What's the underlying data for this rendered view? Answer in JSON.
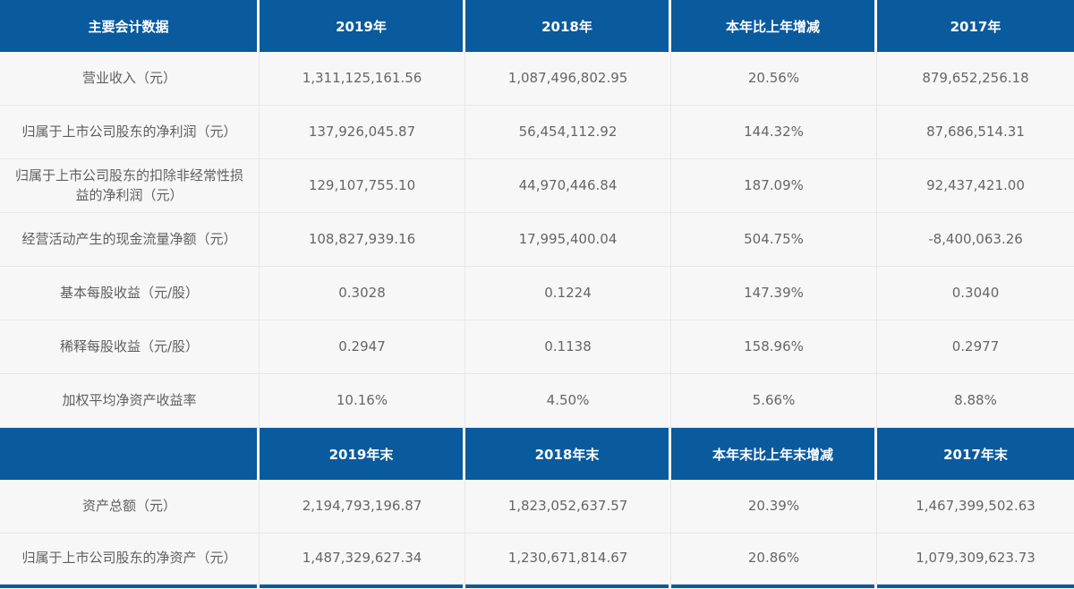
{
  "theme": {
    "header_bg": "#0a5a9e",
    "header_text": "#ffffff",
    "row_bg": "#f7f7f7",
    "body_text": "#666666",
    "grid_line": "#e8e8e8"
  },
  "table": {
    "section_annual": {
      "header": [
        "主要会计数据",
        "2019年",
        "2018年",
        "本年比上年增减",
        "2017年"
      ],
      "rows": [
        {
          "cells": [
            "营业收入（元）",
            "1,311,125,161.56",
            "1,087,496,802.95",
            "20.56%",
            "879,652,256.18"
          ]
        },
        {
          "cells": [
            "归属于上市公司股东的净利润（元）",
            "137,926,045.87",
            "56,454,112.92",
            "144.32%",
            "87,686,514.31"
          ]
        },
        {
          "cells": [
            "归属于上市公司股东的扣除非经常性损益的净利润（元）",
            "129,107,755.10",
            "44,970,446.84",
            "187.09%",
            "92,437,421.00"
          ]
        },
        {
          "cells": [
            "经营活动产生的现金流量净额（元）",
            "108,827,939.16",
            "17,995,400.04",
            "504.75%",
            "-8,400,063.26"
          ]
        },
        {
          "cells": [
            "基本每股收益（元/股）",
            "0.3028",
            "0.1224",
            "147.39%",
            "0.3040"
          ]
        },
        {
          "cells": [
            "稀释每股收益（元/股）",
            "0.2947",
            "0.1138",
            "158.96%",
            "0.2977"
          ]
        },
        {
          "cells": [
            "加权平均净资产收益率",
            "10.16%",
            "4.50%",
            "5.66%",
            "8.88%"
          ]
        }
      ]
    },
    "section_yearend": {
      "header": [
        "",
        "2019年末",
        "2018年末",
        "本年末比上年末增减",
        "2017年末"
      ],
      "rows": [
        {
          "cells": [
            "资产总额（元）",
            "2,194,793,196.87",
            "1,823,052,637.57",
            "20.39%",
            "1,467,399,502.63"
          ]
        },
        {
          "cells": [
            "归属于上市公司股东的净资产（元）",
            "1,487,329,627.34",
            "1,230,671,814.67",
            "20.86%",
            "1,079,309,623.73"
          ]
        }
      ]
    }
  }
}
